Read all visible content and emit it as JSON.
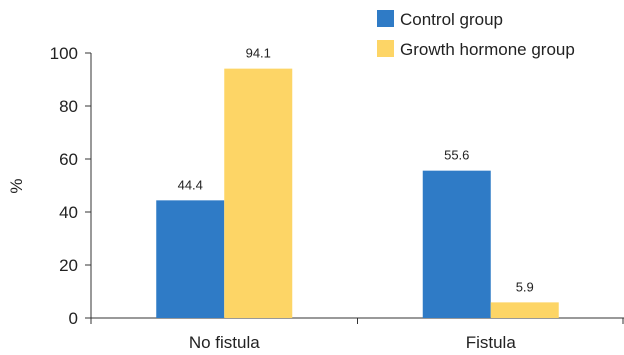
{
  "chart_data": {
    "type": "bar",
    "categories": [
      "No fistula",
      "Fistula"
    ],
    "series": [
      {
        "name": "Control group",
        "values": [
          44.4,
          55.6
        ],
        "labels": [
          "44.4",
          "55.6"
        ],
        "color": "#2f7bc6"
      },
      {
        "name": "Growth hormone group",
        "values": [
          94.1,
          5.9
        ],
        "labels": [
          "94.1",
          "5.9"
        ],
        "color": "#fdd566"
      }
    ],
    "ylabel": "%",
    "ylim": [
      0,
      100
    ],
    "yticks": [
      0,
      20,
      40,
      60,
      80,
      100
    ],
    "grid": false,
    "legend": "top-right"
  }
}
